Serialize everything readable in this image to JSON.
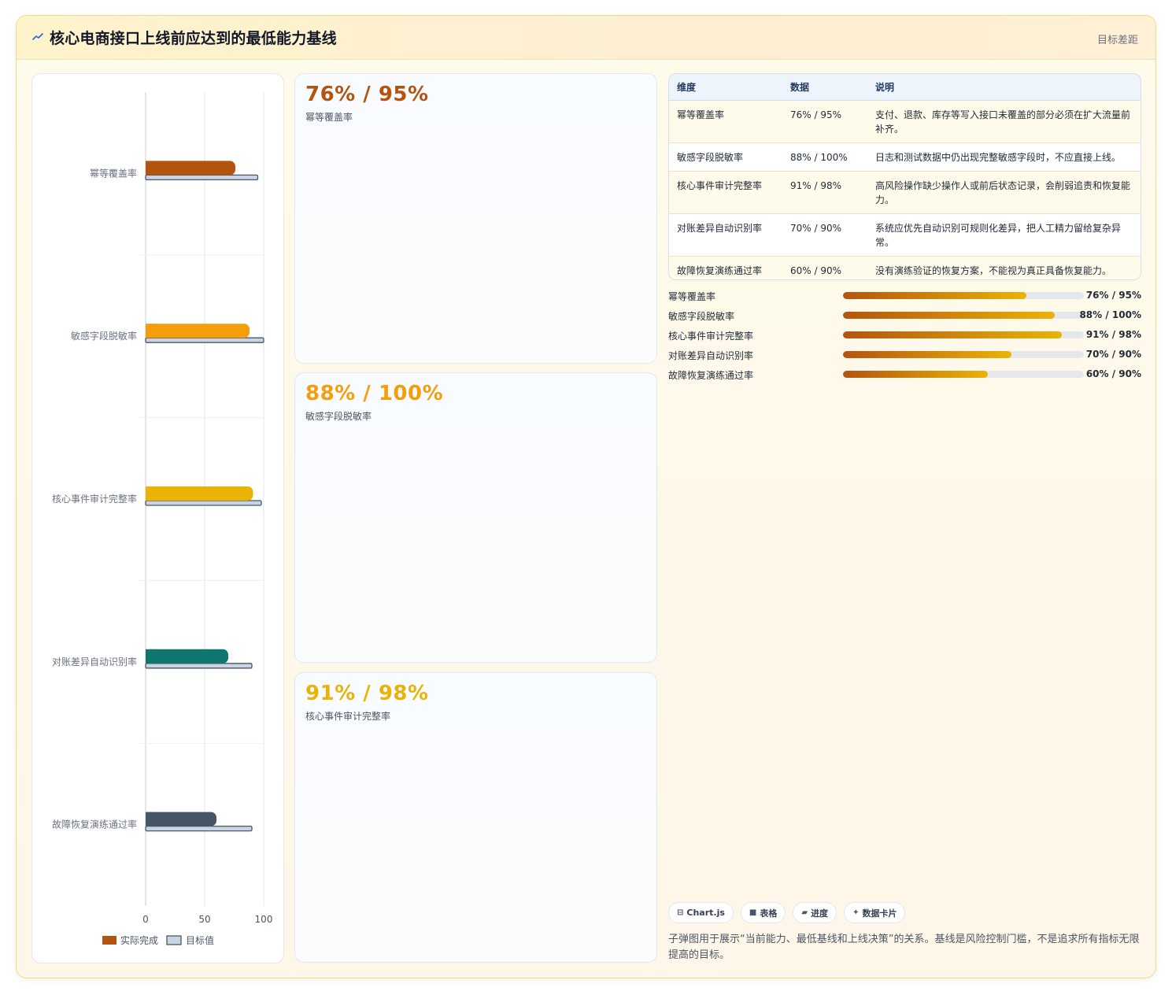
{
  "header": {
    "title": "核心电商接口上线前应达到的最低能力基线",
    "tag": "目标差距",
    "icon": "trend-icon"
  },
  "colors": {
    "target_fill": "#c7d4e4",
    "target_stroke": "#4b5563"
  },
  "chart_data": {
    "type": "bar",
    "orientation": "horizontal",
    "categories": [
      "幂等覆盖率",
      "敏感字段脱敏率",
      "核心事件审计完整率",
      "对账差异自动识别率",
      "故障恢复演练通过率"
    ],
    "series": [
      {
        "name": "实际完成",
        "values": [
          76,
          88,
          91,
          70,
          60
        ],
        "colors": [
          "#b4540f",
          "#f59e0b",
          "#eab308",
          "#0f766e",
          "#475569"
        ]
      },
      {
        "name": "目标值",
        "values": [
          95,
          100,
          98,
          90,
          90
        ],
        "color": "#c7d4e4"
      }
    ],
    "xlim": [
      0,
      100
    ],
    "xticks": [
      "0",
      "50",
      "100"
    ],
    "grid": true,
    "legend": "bottom",
    "legend_labels": [
      "实际完成",
      "目标值"
    ]
  },
  "metrics": [
    {
      "value": "76% / 95%",
      "label": "幂等覆盖率",
      "color": "#b4540f"
    },
    {
      "value": "88% / 100%",
      "label": "敏感字段脱敏率",
      "color": "#f59e0b"
    },
    {
      "value": "91% / 98%",
      "label": "核心事件审计完整率",
      "color": "#eab308"
    }
  ],
  "table": {
    "headers": [
      "维度",
      "数据",
      "说明"
    ],
    "rows": [
      [
        "幂等覆盖率",
        "76% / 95%",
        "支付、退款、库存等写入接口未覆盖的部分必须在扩大流量前补齐。"
      ],
      [
        "敏感字段脱敏率",
        "88% / 100%",
        "日志和测试数据中仍出现完整敏感字段时，不应直接上线。"
      ],
      [
        "核心事件审计完整率",
        "91% / 98%",
        "高风险操作缺少操作人或前后状态记录，会削弱追责和恢复能力。"
      ],
      [
        "对账差异自动识别率",
        "70% / 90%",
        "系统应优先自动识别可规则化差异，把人工精力留给复杂异常。"
      ],
      [
        "故障恢复演练通过率",
        "60% / 90%",
        "没有演练验证的恢复方案，不能视为真正具备恢复能力。"
      ]
    ]
  },
  "progress": [
    {
      "label": "幂等覆盖率",
      "value": "76% / 95%",
      "fraction": 0.76
    },
    {
      "label": "敏感字段脱敏率",
      "value": "88% / 100%",
      "fraction": 0.88
    },
    {
      "label": "核心事件审计完整率",
      "value": "91% / 98%",
      "fraction": 0.91
    },
    {
      "label": "对账差异自动识别率",
      "value": "70% / 90%",
      "fraction": 0.7
    },
    {
      "label": "故障恢复演练通过率",
      "value": "60% / 90%",
      "fraction": 0.6
    }
  ],
  "chips": [
    {
      "icon": "chart-icon",
      "glyph": "⊟",
      "label": "Chart.js"
    },
    {
      "icon": "table-icon",
      "glyph": "■",
      "label": "表格"
    },
    {
      "icon": "progress-icon",
      "glyph": "▰",
      "label": "进度"
    },
    {
      "icon": "sparkle-icon",
      "glyph": "✦",
      "label": "数据卡片"
    }
  ],
  "note": "子弹图用于展示“当前能力、最低基线和上线决策”的关系。基线是风险控制门槛，不是追求所有指标无限提高的目标。"
}
